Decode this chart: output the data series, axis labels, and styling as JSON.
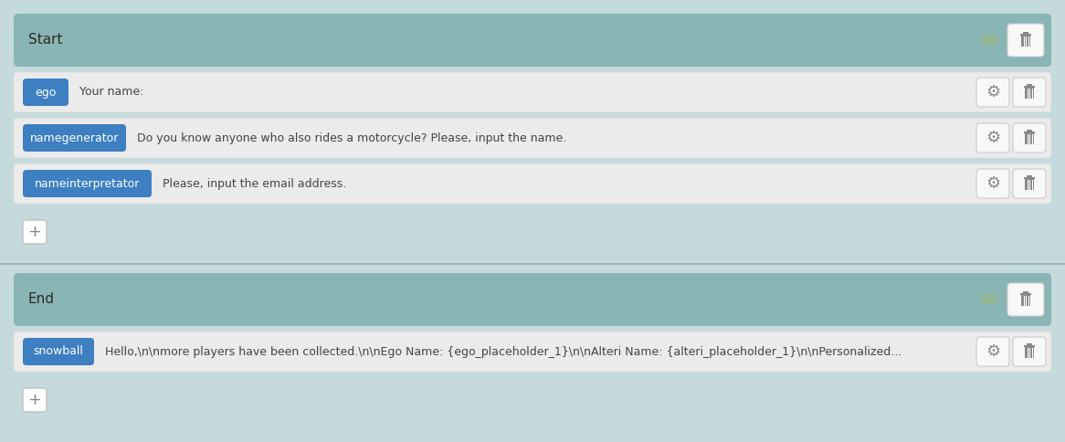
{
  "bg_color": "#c5dadc",
  "header_bg": "#8ab5b5",
  "btn_blue": "#3d7fc1",
  "btn_text_color": "#ffffff",
  "row_bg": "#ebebeb",
  "row_border": "#d8d8d8",
  "header_text_color": "#2a2a2a",
  "text_color": "#444444",
  "icon_box_color": "#f8f8f8",
  "icon_box_border": "#cccccc",
  "trash_color": "#888888",
  "gear_color": "#888888",
  "plus_color": "#888888",
  "lines_icon_color": "#9ab87a",
  "separator_color": "#b0c8c8",
  "panel1_header": "Start",
  "panel2_header": "End",
  "rows_panel1": [
    {
      "btn_label": "ego",
      "text": "Your name:"
    },
    {
      "btn_label": "namegenerator",
      "text": "Do you know anyone who also rides a motorcycle? Please, input the name."
    },
    {
      "btn_label": "nameinterpretator",
      "text": "Please, input the email address."
    }
  ],
  "rows_panel2": [
    {
      "btn_label": "snowball",
      "text": "Hello,\\n\\nmore players have been collected.\\n\\nEgo Name: {ego_placeholder_1}\\n\\nAlteri Name: {alteri_placeholder_1}\\n\\nPersonalized..."
    }
  ],
  "fig_width": 11.66,
  "fig_height": 4.84,
  "dpi": 100
}
